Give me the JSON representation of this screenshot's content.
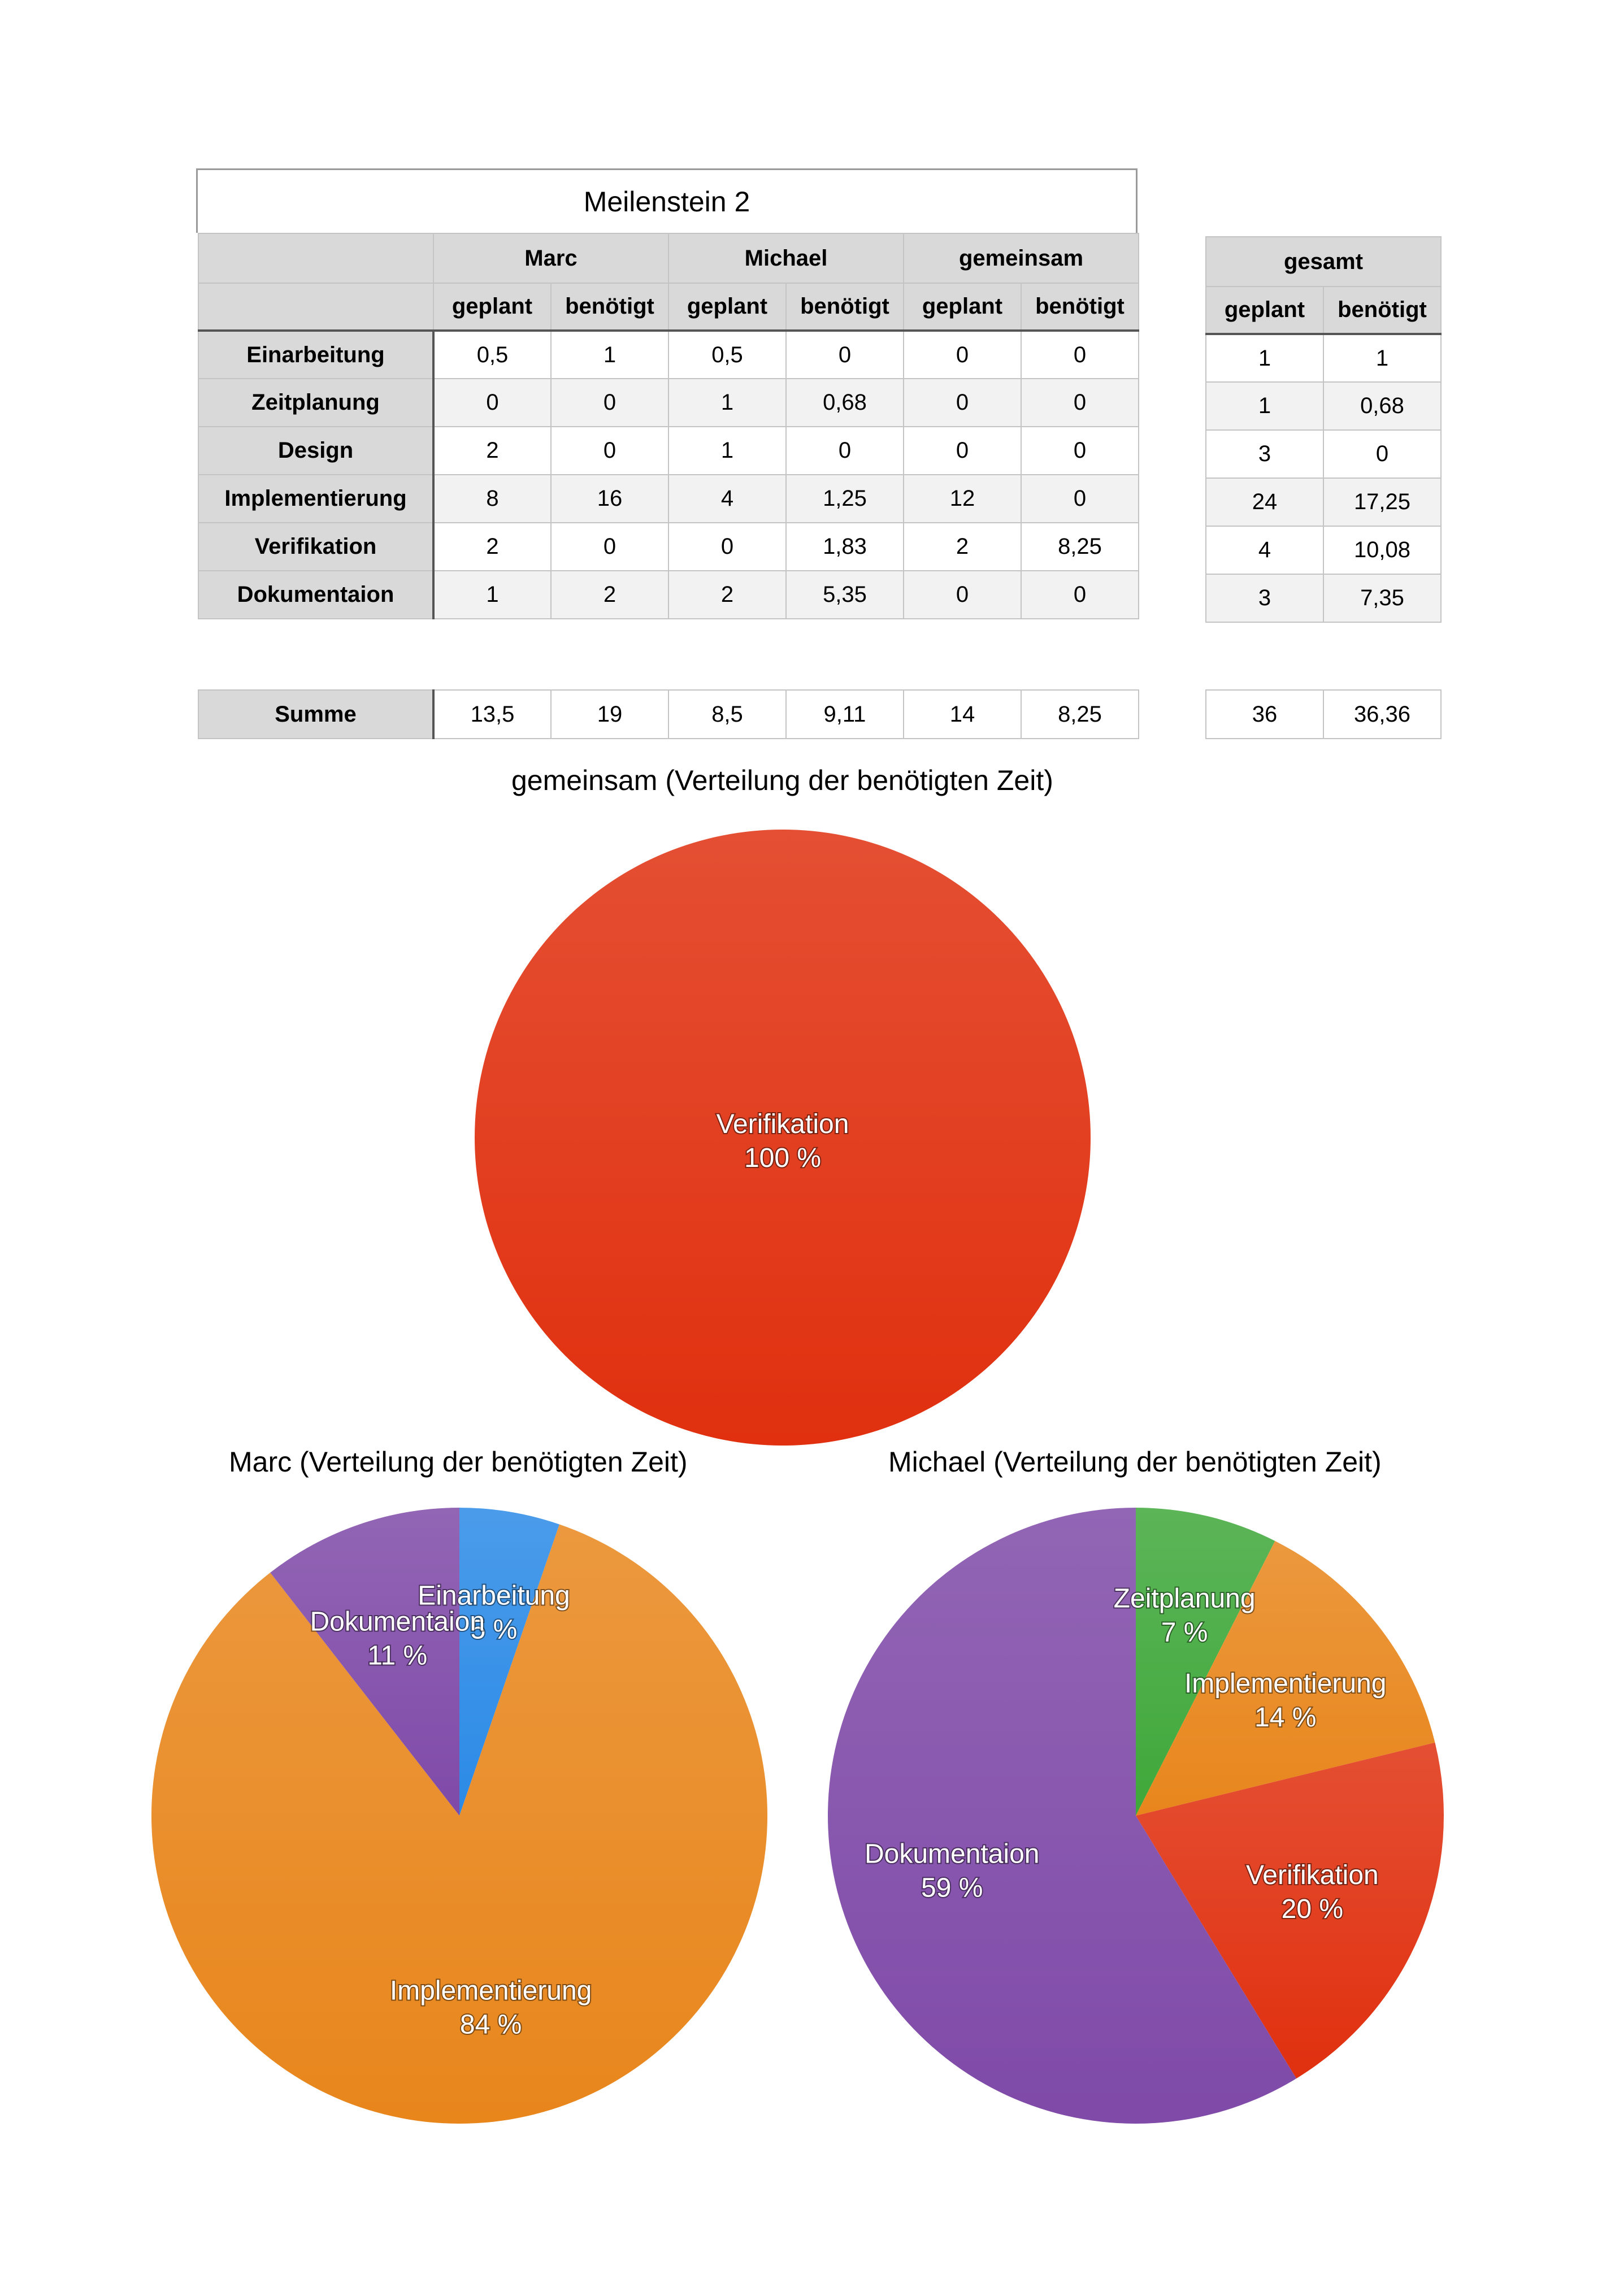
{
  "title": "Meilenstein 2",
  "table": {
    "group_headers": [
      "Marc",
      "Michael",
      "gemeinsam"
    ],
    "sub_headers": [
      "geplant",
      "benötigt"
    ],
    "rows": [
      {
        "label": "Einarbeitung",
        "values": [
          "0,5",
          "1",
          "0,5",
          "0",
          "0",
          "0"
        ]
      },
      {
        "label": "Zeitplanung",
        "values": [
          "0",
          "0",
          "1",
          "0,68",
          "0",
          "0"
        ]
      },
      {
        "label": "Design",
        "values": [
          "2",
          "0",
          "1",
          "0",
          "0",
          "0"
        ]
      },
      {
        "label": "Implementierung",
        "values": [
          "8",
          "16",
          "4",
          "1,25",
          "12",
          "0"
        ]
      },
      {
        "label": "Verifikation",
        "values": [
          "2",
          "0",
          "0",
          "1,83",
          "2",
          "8,25"
        ]
      },
      {
        "label": "Dokumentaion",
        "values": [
          "1",
          "2",
          "2",
          "5,35",
          "0",
          "0"
        ]
      }
    ],
    "sum": {
      "label": "Summe",
      "values": [
        "13,5",
        "19",
        "8,5",
        "9,11",
        "14",
        "8,25"
      ]
    }
  },
  "total_table": {
    "header": "gesamt",
    "sub_headers": [
      "geplant",
      "benötigt"
    ],
    "rows": [
      [
        "1",
        "1"
      ],
      [
        "1",
        "0,68"
      ],
      [
        "3",
        "0"
      ],
      [
        "24",
        "17,25"
      ],
      [
        "4",
        "10,08"
      ],
      [
        "3",
        "7,35"
      ]
    ],
    "sum": [
      "36",
      "36,36"
    ]
  },
  "chart_data": [
    {
      "type": "pie",
      "title": "gemeinsam (Verteilung der benötigten Zeit)",
      "slices": [
        {
          "label": "Verifikation",
          "value": 8.25,
          "percent_label": "100 %",
          "color": "#e0300f"
        }
      ]
    },
    {
      "type": "pie",
      "title": "Marc (Verteilung der benötigten Zeit)",
      "slices": [
        {
          "label": "Einarbeitung",
          "value": 1,
          "percent_label": "5 %",
          "color": "#2b8ae6"
        },
        {
          "label": "Implementierung",
          "value": 16,
          "percent_label": "84 %",
          "color": "#e8861c"
        },
        {
          "label": "Dokumentaion",
          "value": 2,
          "percent_label": "11 %",
          "color": "#7f4aa8"
        }
      ]
    },
    {
      "type": "pie",
      "title": "Michael (Verteilung der benötigten Zeit)",
      "slices": [
        {
          "label": "Zeitplanung",
          "value": 0.68,
          "percent_label": "7 %",
          "color": "#3fa83a"
        },
        {
          "label": "Implementierung",
          "value": 1.25,
          "percent_label": "14 %",
          "color": "#e8861c"
        },
        {
          "label": "Verifikation",
          "value": 1.83,
          "percent_label": "20 %",
          "color": "#e0300f"
        },
        {
          "label": "Dokumentaion",
          "value": 5.35,
          "percent_label": "59 %",
          "color": "#7f4aa8"
        }
      ]
    }
  ]
}
